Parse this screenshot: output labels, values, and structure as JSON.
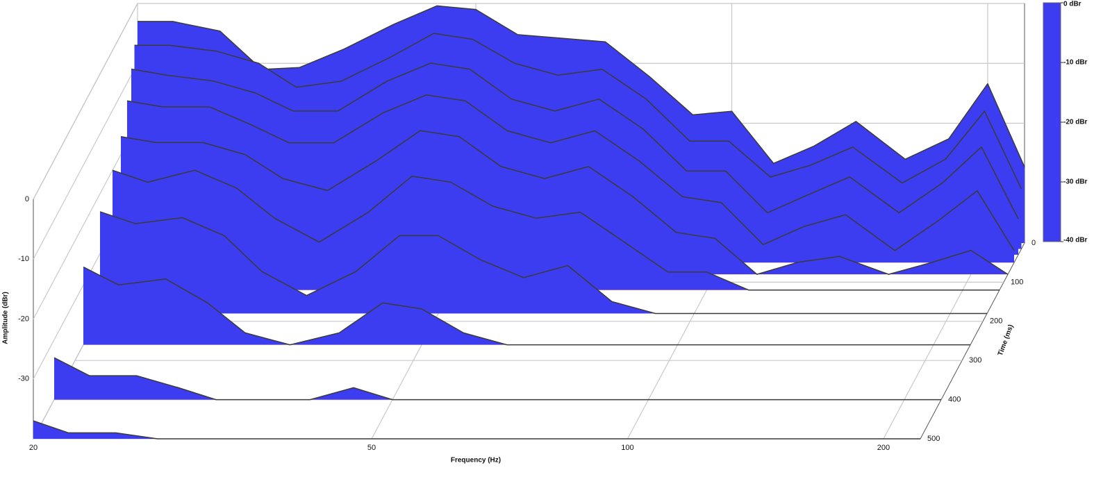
{
  "chart_data": {
    "type": "waterfall",
    "x_label": "Frequency (Hz)",
    "y_label": "Amplitude (dBr)",
    "z_label": "Time (ms)",
    "x_log": true,
    "xlim": [
      20,
      221
    ],
    "xticks": [
      20,
      50,
      100,
      200
    ],
    "ylim": [
      -40,
      0
    ],
    "yticks": [
      0,
      -10,
      -20,
      -30
    ],
    "zlim": [
      0,
      500
    ],
    "zticks": [
      0,
      100,
      200,
      300,
      400,
      500
    ],
    "grid": true,
    "x": [
      20,
      22,
      25,
      28,
      31,
      35,
      40,
      45,
      50,
      56,
      63,
      71,
      80,
      90,
      100,
      112,
      125,
      140,
      160,
      180,
      200,
      221
    ],
    "series": [
      {
        "time": 0,
        "values": [
          -3,
          -3,
          -4.6,
          -11,
          -10.7,
          -7.6,
          -3.5,
          -0.4,
          -1,
          -5.2,
          -5.8,
          -6.4,
          -12.2,
          -18.6,
          -18,
          -26.7,
          -23.8,
          -19.7,
          -26,
          -22.6,
          -13.4,
          -27.3
        ]
      },
      {
        "time": 15,
        "values": [
          -6,
          -6,
          -7,
          -9,
          -13,
          -12,
          -8,
          -4,
          -5,
          -9,
          -11,
          -10,
          -15,
          -22,
          -22,
          -28,
          -26,
          -23,
          -29,
          -25,
          -17,
          -30
        ]
      },
      {
        "time": 30,
        "values": [
          -9,
          -10,
          -11,
          -13,
          -16,
          -16,
          -11,
          -8,
          -9,
          -14,
          -16,
          -14,
          -19,
          -26,
          -26,
          -33,
          -30,
          -27,
          -33,
          -28,
          -22,
          -34
        ]
      },
      {
        "time": 50,
        "values": [
          -13,
          -14,
          -14,
          -17,
          -20,
          -20,
          -15,
          -12,
          -13,
          -18,
          -20,
          -18,
          -23,
          -29,
          -30,
          -37,
          -34,
          -32,
          -38,
          -33,
          -28,
          -38
        ]
      },
      {
        "time": 80,
        "values": [
          -17,
          -18,
          -18,
          -20,
          -24,
          -26,
          -21,
          -16,
          -17,
          -22,
          -24,
          -22,
          -27,
          -33,
          -34,
          -40,
          -38,
          -37,
          -40,
          -38,
          -36,
          -40
        ]
      },
      {
        "time": 120,
        "values": [
          -20,
          -22,
          -20,
          -23,
          -28,
          -32,
          -27,
          -21,
          -22,
          -26,
          -28,
          -27,
          -32,
          -37,
          -37,
          -40,
          -40,
          -40,
          -40,
          -40,
          -40,
          -40
        ]
      },
      {
        "time": 180,
        "values": [
          -23,
          -25,
          -24,
          -27,
          -33,
          -37,
          -33,
          -27,
          -27,
          -31,
          -34,
          -32,
          -38,
          -40,
          -40,
          -40,
          -40,
          -40,
          -40,
          -40,
          -40,
          -40
        ]
      },
      {
        "time": 260,
        "values": [
          -27,
          -30,
          -29,
          -33,
          -38,
          -40,
          -38,
          -33,
          -34,
          -38,
          -40,
          -40,
          -40,
          -40,
          -40,
          -40,
          -40,
          -40,
          -40,
          -40,
          -40,
          -40
        ]
      },
      {
        "time": 400,
        "values": [
          -33,
          -36,
          -36,
          -38,
          -40,
          -40,
          -40,
          -38,
          -40,
          -40,
          -40,
          -40,
          -40,
          -40,
          -40,
          -40,
          -40,
          -40,
          -40,
          -40,
          -40,
          -40
        ]
      },
      {
        "time": 500,
        "values": [
          -37,
          -39,
          -39,
          -40,
          -40,
          -40,
          -40,
          -40,
          -40,
          -40,
          -40,
          -40,
          -40,
          -40,
          -40,
          -40,
          -40,
          -40,
          -40,
          -40,
          -40,
          -40
        ]
      }
    ],
    "colorscale": [
      {
        "value": -40,
        "color": "#3c3cf0"
      },
      {
        "value": -33,
        "color": "#3a78b8"
      },
      {
        "value": -27,
        "color": "#30b070"
      },
      {
        "value": -20,
        "color": "#40e040"
      },
      {
        "value": -10,
        "color": "#e0e040"
      },
      {
        "value": -5,
        "color": "#f0a030"
      },
      {
        "value": 0,
        "color": "#e03a2a"
      }
    ],
    "colorbar_ticks": [
      {
        "value": 0,
        "label": "0 dBr"
      },
      {
        "value": -10,
        "label": "-10 dBr"
      },
      {
        "value": -20,
        "label": "-20 dBr"
      },
      {
        "value": -30,
        "label": "-30 dBr"
      },
      {
        "value": -40,
        "label": "-40 dBr"
      }
    ]
  }
}
